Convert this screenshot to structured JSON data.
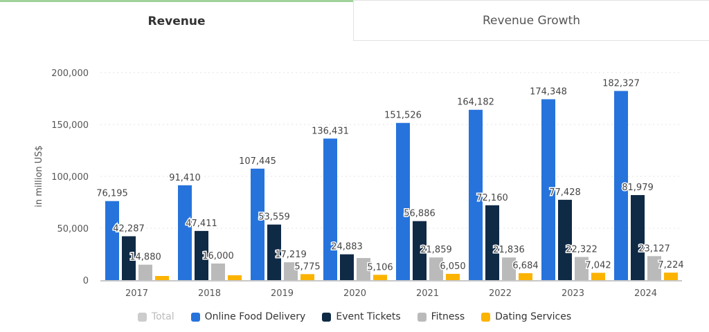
{
  "tabs": [
    {
      "label": "Revenue",
      "active": true
    },
    {
      "label": "Revenue Growth",
      "active": false
    }
  ],
  "chart_data": {
    "type": "bar",
    "title": "",
    "xlabel": "",
    "ylabel": "in million US$",
    "ylim": [
      0,
      200000
    ],
    "yticks": [
      0,
      50000,
      100000,
      150000,
      200000
    ],
    "ytick_labels": [
      "0",
      "50,000",
      "100,000",
      "150,000",
      "200,000"
    ],
    "grid": true,
    "legend_position": "bottom",
    "categories": [
      "2017",
      "2018",
      "2019",
      "2020",
      "2021",
      "2022",
      "2023",
      "2024"
    ],
    "series": [
      {
        "name": "Online Food Delivery",
        "color": "#2673dc",
        "values": [
          76195,
          91410,
          107445,
          136431,
          151526,
          164182,
          174348,
          182327
        ],
        "labels": [
          "76,195",
          "91,410",
          "107,445",
          "136,431",
          "151,526",
          "164,182",
          "174,348",
          "182,327"
        ]
      },
      {
        "name": "Event Tickets",
        "color": "#0f2a45",
        "values": [
          42287,
          47411,
          53559,
          24883,
          56886,
          72160,
          77428,
          81979
        ],
        "labels": [
          "42,287",
          "47,411",
          "53,559",
          "24,883",
          "56,886",
          "72,160",
          "77,428",
          "81,979"
        ]
      },
      {
        "name": "Fitness",
        "color": "#bababa",
        "values": [
          14880,
          16000,
          17219,
          21300,
          21859,
          21836,
          22322,
          23127
        ],
        "labels": [
          "14,880",
          "16,000",
          "17,219",
          "",
          "21,859",
          "21,836",
          "22,322",
          "23,127"
        ]
      },
      {
        "name": "Dating Services",
        "color": "#fbb300",
        "values": [
          4000,
          4700,
          5775,
          5106,
          6050,
          6684,
          7042,
          7224
        ],
        "labels": [
          "",
          "",
          "5,775",
          "5,106",
          "6,050",
          "6,684",
          "7,042",
          "7,224"
        ]
      }
    ],
    "legend": [
      {
        "name": "Total",
        "color": "#cccccc",
        "disabled": true
      },
      {
        "name": "Online Food Delivery",
        "color": "#2673dc",
        "disabled": false
      },
      {
        "name": "Event Tickets",
        "color": "#0f2a45",
        "disabled": false
      },
      {
        "name": "Fitness",
        "color": "#bababa",
        "disabled": false
      },
      {
        "name": "Dating Services",
        "color": "#fbb300",
        "disabled": false
      }
    ]
  }
}
